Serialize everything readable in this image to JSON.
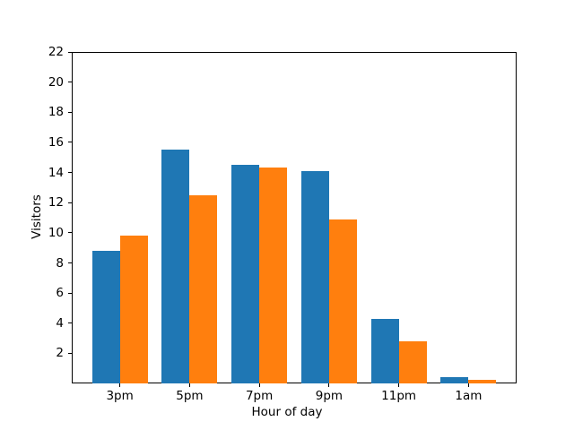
{
  "chart_data": {
    "type": "bar",
    "title": "",
    "xlabel": "Hour of day",
    "ylabel": "Visitors",
    "categories": [
      "3pm",
      "5pm",
      "7pm",
      "9pm",
      "11pm",
      "1am"
    ],
    "series": [
      {
        "name": "blue-series",
        "color": "#1f77b4",
        "values": [
          8.8,
          15.5,
          14.5,
          14.1,
          4.3,
          0.4
        ]
      },
      {
        "name": "orange-series",
        "color": "#ff7f0e",
        "values": [
          9.8,
          12.5,
          14.3,
          10.9,
          2.8,
          0.25
        ]
      }
    ],
    "ylim": [
      0,
      22
    ],
    "yticks": [
      2,
      4,
      6,
      8,
      10,
      12,
      14,
      16,
      18,
      20,
      22
    ],
    "bar_width_units": 0.4,
    "xlim": [
      -0.69,
      5.69
    ],
    "legend_position": "none",
    "grid": false,
    "colors": {
      "background": "#ffffff",
      "axis": "#000000",
      "text": "#000000"
    }
  }
}
